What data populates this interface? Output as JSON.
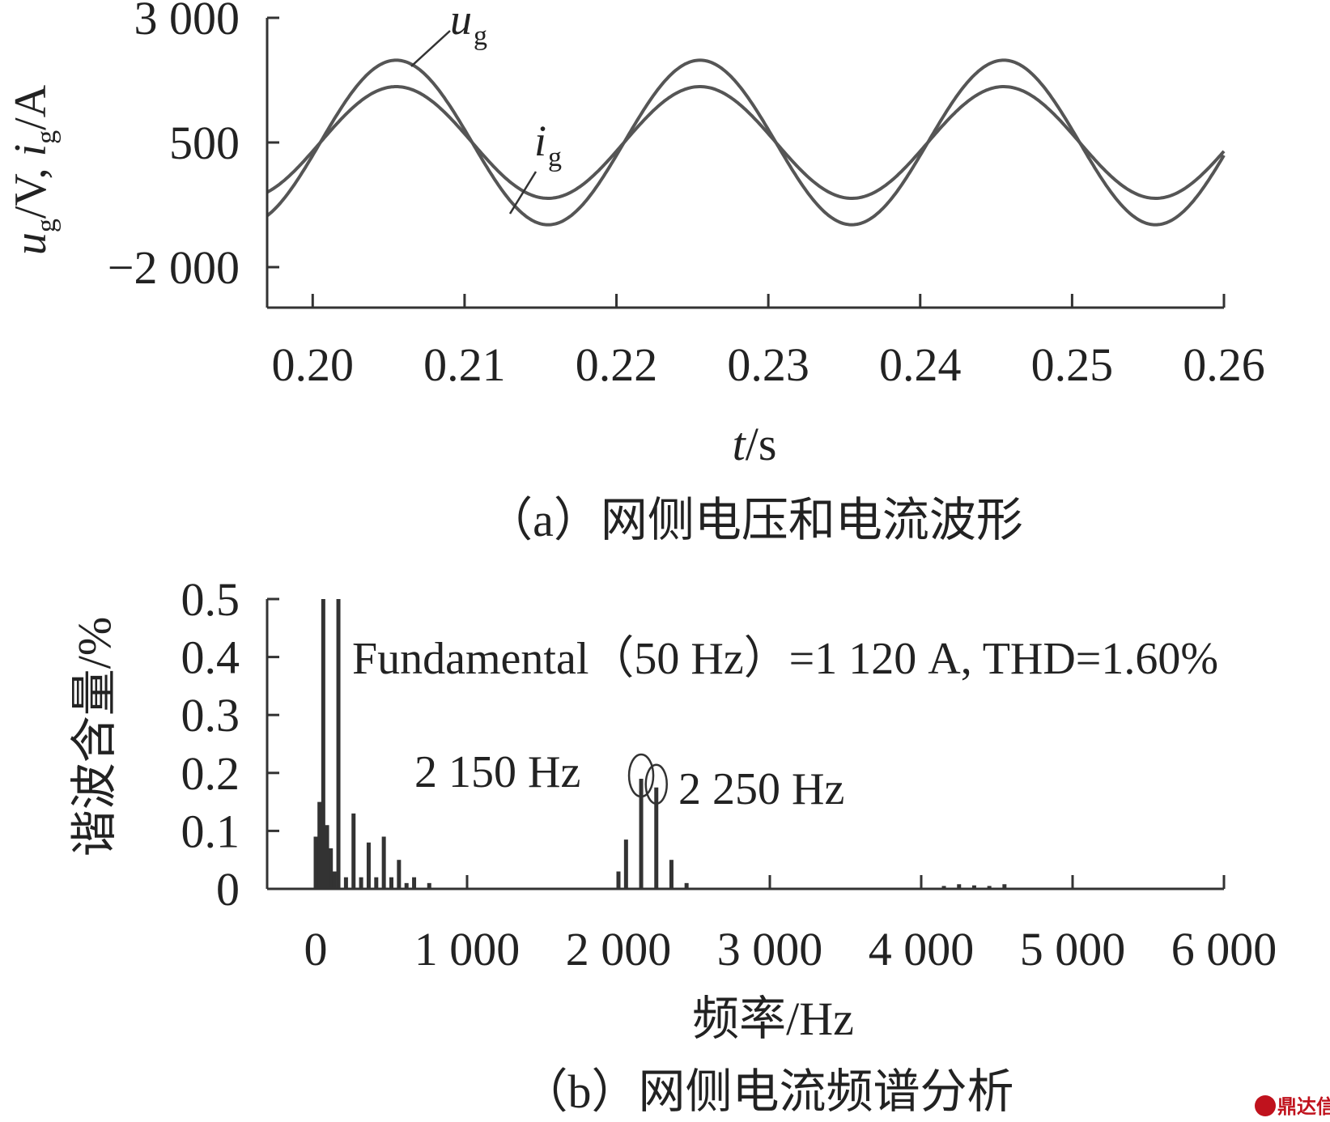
{
  "chart_data": [
    {
      "type": "line",
      "caption": "（a）网侧电压和电流波形",
      "xlabel_italic": "t",
      "xlabel_rest": "/s",
      "ylabel_u": "u",
      "ylabel_g1": "g",
      "ylabel_mid": "/V, ",
      "ylabel_i": "i",
      "ylabel_g2": "g",
      "ylabel_end": "/A",
      "xlim": [
        0.197,
        0.26
      ],
      "ylim": [
        -3000,
        3000
      ],
      "xticks": [
        0.2,
        0.21,
        0.22,
        0.23,
        0.24,
        0.25,
        0.26
      ],
      "xtick_labels": [
        "0.20",
        "0.21",
        "0.22",
        "0.23",
        "0.24",
        "0.25",
        "0.26"
      ],
      "yticks": [
        3000,
        500,
        -2000
      ],
      "ytick_labels": [
        "3 000",
        "500",
        "−2 000"
      ],
      "series": [
        {
          "name": "u",
          "sub": "g",
          "amplitude": 1650,
          "offset": 500,
          "frequency_hz": 50,
          "peak_t": 0.2055,
          "color": "#555555"
        },
        {
          "name": "i",
          "sub": "g",
          "amplitude": 1120,
          "offset": 500,
          "frequency_hz": 50,
          "peak_t": 0.2055,
          "color": "#555555"
        }
      ]
    },
    {
      "type": "bar",
      "caption": "（b）网侧电流频谱分析",
      "xlabel": "频率/Hz",
      "ylabel": "谐波含量/%",
      "xlim": [
        -300,
        6000
      ],
      "ylim": [
        0,
        0.5
      ],
      "xticks": [
        0,
        1000,
        2000,
        3000,
        4000,
        5000,
        6000
      ],
      "xtick_labels": [
        "0",
        "1 000",
        "2 000",
        "3 000",
        "4 000",
        "5 000",
        "6 000"
      ],
      "yticks": [
        0,
        0.1,
        0.2,
        0.3,
        0.4,
        0.5
      ],
      "ytick_labels": [
        "0",
        "0.1",
        "0.2",
        "0.3",
        "0.4",
        "0.5"
      ],
      "annotation": "Fundamental（50 Hz）=1 120 A, THD=1.60%",
      "peak_labels": [
        "2 150 Hz",
        "2 250 Hz"
      ],
      "peak_freqs": [
        2150,
        2250
      ],
      "bars": [
        {
          "f": 0,
          "v": 0.09
        },
        {
          "f": 25,
          "v": 0.15
        },
        {
          "f": 50,
          "v": 0.5
        },
        {
          "f": 75,
          "v": 0.11
        },
        {
          "f": 100,
          "v": 0.07
        },
        {
          "f": 150,
          "v": 0.5
        },
        {
          "f": 125,
          "v": 0.03
        },
        {
          "f": 200,
          "v": 0.02
        },
        {
          "f": 250,
          "v": 0.13
        },
        {
          "f": 300,
          "v": 0.02
        },
        {
          "f": 350,
          "v": 0.08
        },
        {
          "f": 400,
          "v": 0.02
        },
        {
          "f": 450,
          "v": 0.09
        },
        {
          "f": 500,
          "v": 0.02
        },
        {
          "f": 550,
          "v": 0.05
        },
        {
          "f": 600,
          "v": 0.01
        },
        {
          "f": 650,
          "v": 0.02
        },
        {
          "f": 750,
          "v": 0.01
        },
        {
          "f": 2000,
          "v": 0.03
        },
        {
          "f": 2050,
          "v": 0.085
        },
        {
          "f": 2150,
          "v": 0.19
        },
        {
          "f": 2250,
          "v": 0.175
        },
        {
          "f": 2350,
          "v": 0.05
        },
        {
          "f": 2450,
          "v": 0.01
        },
        {
          "f": 4150,
          "v": 0.005
        },
        {
          "f": 4250,
          "v": 0.008
        },
        {
          "f": 4350,
          "v": 0.006
        },
        {
          "f": 4450,
          "v": 0.005
        },
        {
          "f": 4550,
          "v": 0.008
        }
      ]
    }
  ],
  "watermark": "鼎达信"
}
